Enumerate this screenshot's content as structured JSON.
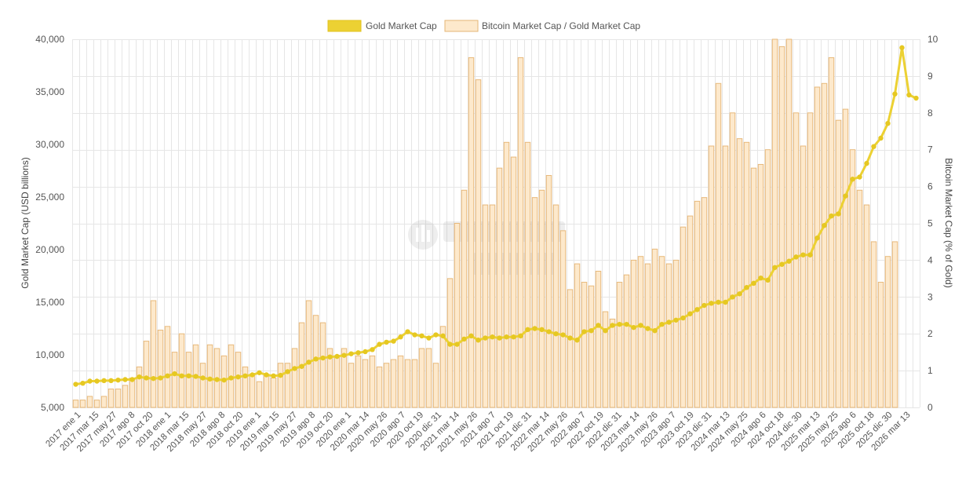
{
  "chart_data": {
    "type": "bar+line",
    "legend": {
      "gold_label": "Gold Market Cap",
      "ratio_label": "Bitcoin Market Cap / Gold Market Cap",
      "placement": "top-center"
    },
    "y_left": {
      "label": "Gold Market Cap (USD billions)",
      "range": [
        5000,
        40000
      ],
      "ticks": [
        "5,000",
        "10,000",
        "15,000",
        "20,000",
        "25,000",
        "30,000",
        "35,000",
        "40,000"
      ]
    },
    "y_right": {
      "label": "Bitcoin Market Cap (% of Gold)",
      "range": [
        0,
        10
      ],
      "ticks": [
        "0",
        "1",
        "2",
        "3",
        "4",
        "5",
        "6",
        "7",
        "8",
        "9",
        "10"
      ]
    },
    "x_labels": [
      "2017 ene 1",
      "2017 mar 15",
      "2017 may 27",
      "2017 ago 8",
      "2017 oct 20",
      "2018 ene 1",
      "2018 mar 15",
      "2018 may 27",
      "2018 ago 8",
      "2018 oct 20",
      "2019 ene 1",
      "2019 mar 15",
      "2019 may 27",
      "2019 ago 8",
      "2019 oct 20",
      "2020 ene 1",
      "2020 mar 14",
      "2020 may 26",
      "2020 ago 7",
      "2020 oct 19",
      "2020 dic 31",
      "2021 mar 14",
      "2021 may 26",
      "2021 ago 7",
      "2021 oct 19",
      "2021 dic 31",
      "2022 mar 14",
      "2022 may 26",
      "2022 ago 7",
      "2022 oct 19",
      "2022 dic 31",
      "2023 mar 14",
      "2023 may 26",
      "2023 ago 7",
      "2023 oct 19",
      "2023 dic 31",
      "2024 mar 13",
      "2024 may 25",
      "2024 ago 6",
      "2024 oct 18",
      "2024 dic 30",
      "2025 mar 13",
      "2025 may 25",
      "2025 ago 6",
      "2025 oct 18",
      "2025 dic 30",
      "2026 mar 13"
    ],
    "gold_market_cap": [
      7200,
      7300,
      7500,
      7500,
      7550,
      7550,
      7600,
      7650,
      7650,
      7900,
      7800,
      7750,
      7800,
      8000,
      8200,
      8000,
      8000,
      7950,
      7800,
      7700,
      7650,
      7600,
      7800,
      7900,
      8000,
      8100,
      8300,
      8100,
      8000,
      8050,
      8400,
      8700,
      8900,
      9300,
      9600,
      9700,
      9800,
      9850,
      9950,
      10100,
      10200,
      10300,
      10500,
      11000,
      11200,
      11300,
      11700,
      12200,
      11900,
      11800,
      11600,
      11900,
      11800,
      11000,
      11000,
      11500,
      11800,
      11400,
      11600,
      11700,
      11600,
      11700,
      11700,
      11800,
      12400,
      12500,
      12400,
      12200,
      12000,
      11900,
      11600,
      11400,
      12200,
      12300,
      12800,
      12300,
      12800,
      12900,
      12900,
      12600,
      12800,
      12500,
      12300,
      12900,
      13100,
      13300,
      13500,
      13900,
      14300,
      14700,
      14900,
      15000,
      15000,
      15500,
      15800,
      16400,
      16800,
      17300,
      17100,
      18300,
      18600,
      18900,
      19300,
      19500,
      19500,
      21100,
      22300,
      23200,
      23400,
      25100,
      26700,
      26900,
      28200,
      29800,
      30600,
      32000,
      34800,
      39200,
      34700,
      34400
    ],
    "btc_gold_ratio_pct": [
      0.2,
      0.2,
      0.3,
      0.2,
      0.3,
      0.5,
      0.5,
      0.6,
      0.8,
      1.1,
      1.8,
      2.9,
      2.1,
      2.2,
      1.5,
      2.0,
      1.5,
      1.7,
      1.2,
      1.7,
      1.6,
      1.4,
      1.7,
      1.5,
      1.1,
      0.9,
      0.7,
      0.9,
      0.8,
      1.2,
      1.2,
      1.6,
      2.3,
      2.9,
      2.5,
      2.3,
      1.6,
      1.4,
      1.6,
      1.2,
      1.4,
      1.3,
      1.4,
      1.1,
      1.2,
      1.3,
      1.4,
      1.3,
      1.3,
      1.6,
      1.6,
      1.2,
      2.2,
      3.5,
      5.0,
      5.9,
      9.5,
      8.9,
      5.5,
      5.5,
      6.5,
      7.2,
      6.8,
      9.5,
      7.2,
      5.7,
      5.9,
      6.3,
      5.5,
      4.8,
      3.2,
      3.9,
      3.4,
      3.3,
      3.7,
      2.6,
      2.4,
      3.4,
      3.6,
      4.0,
      4.1,
      3.9,
      4.3,
      4.1,
      3.9,
      4.0,
      4.9,
      5.2,
      5.6,
      5.7,
      7.1,
      8.8,
      7.1,
      8.0,
      7.3,
      7.2,
      6.5,
      6.6,
      7.0,
      10.0,
      9.8,
      10.0,
      8.0,
      7.1,
      8.0,
      8.7,
      8.8,
      9.5,
      7.8,
      8.1,
      7.0,
      5.9,
      5.5,
      4.5,
      3.4,
      4.1,
      4.5
    ]
  }
}
